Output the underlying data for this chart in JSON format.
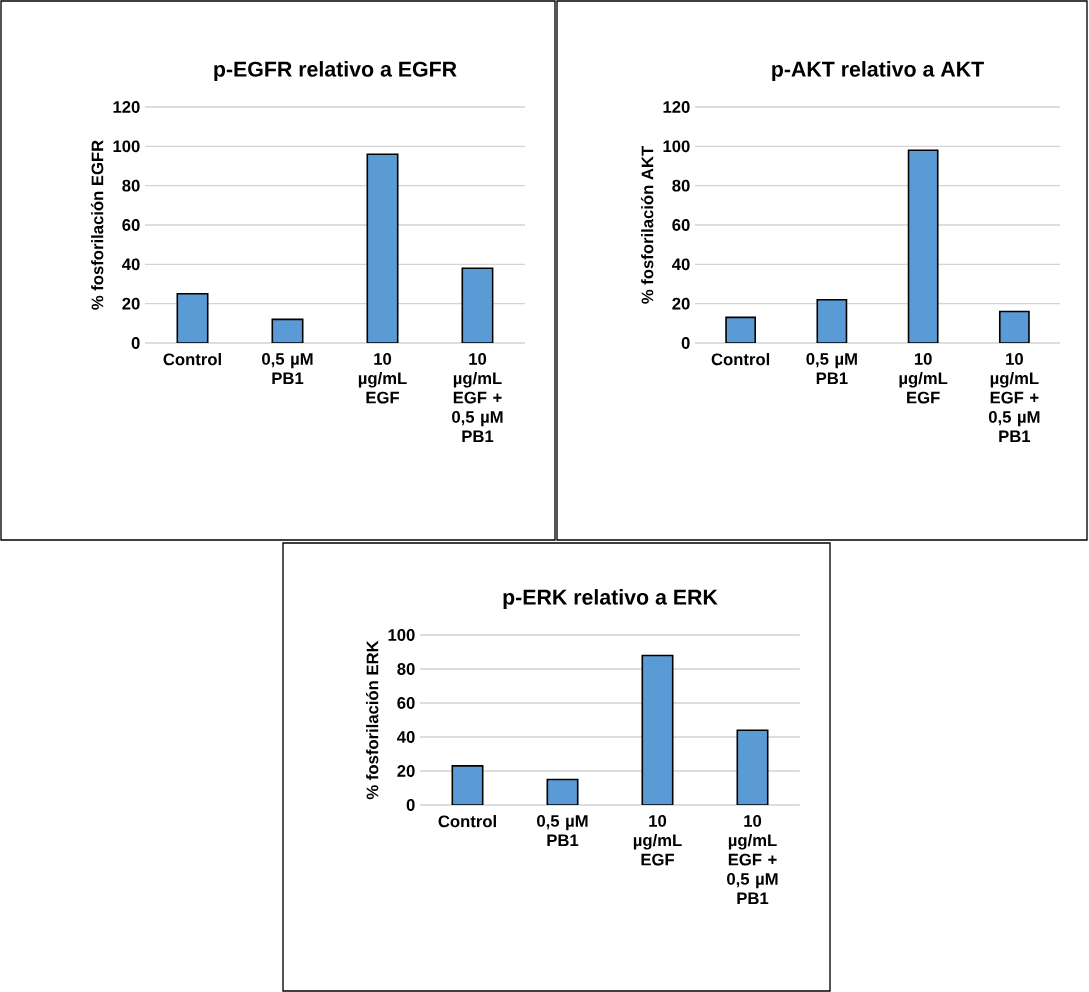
{
  "chart_data": [
    {
      "type": "bar",
      "title": "p-EGFR relativo a EGFR",
      "ylabel": "% fosforilación EGFR",
      "categories": [
        "Control",
        "0,5 µM PB1",
        "10 µg/mL EGF",
        "10 µg/mL EGF + 0,5 µM PB1"
      ],
      "values": [
        25,
        12,
        96,
        38
      ],
      "color": "#5b9bd5",
      "ylim": [
        0,
        120
      ],
      "yticks": [
        0,
        20,
        40,
        60,
        80,
        100,
        120
      ],
      "grid": "y"
    },
    {
      "type": "bar",
      "title": "p-AKT relativo a AKT",
      "ylabel": "% fosforilación AKT",
      "categories": [
        "Control",
        "0,5 µM PB1",
        "10 µg/mL EGF",
        "10 µg/mL EGF + 0,5 µM PB1"
      ],
      "values": [
        13,
        22,
        98,
        16
      ],
      "color": "#5b9bd5",
      "ylim": [
        0,
        120
      ],
      "yticks": [
        0,
        20,
        40,
        60,
        80,
        100,
        120
      ],
      "grid": "y"
    },
    {
      "type": "bar",
      "title": "p-ERK relativo a ERK",
      "ylabel": "% fosforilación ERK",
      "categories": [
        "Control",
        "0,5 µM PB1",
        "10 µg/mL EGF",
        "10 µg/mL EGF + 0,5 µM PB1"
      ],
      "values": [
        23,
        15,
        88,
        44
      ],
      "color": "#5b9bd5",
      "ylim": [
        0,
        100
      ],
      "yticks": [
        0,
        20,
        40,
        60,
        80,
        100
      ],
      "grid": "y"
    }
  ]
}
